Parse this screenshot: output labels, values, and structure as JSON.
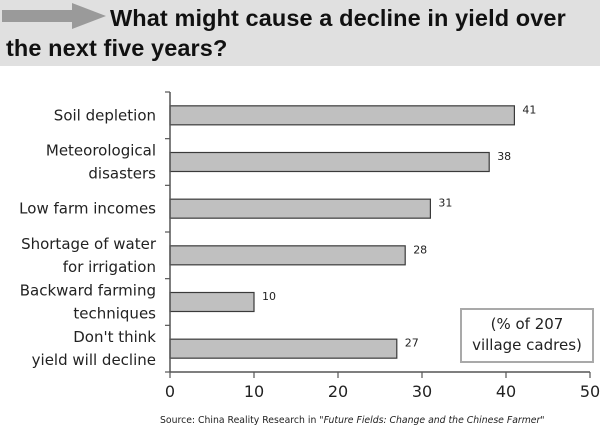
{
  "title": "What might cause a decline in yield over the next five years?",
  "chart_data": {
    "type": "bar",
    "orientation": "horizontal",
    "title": "What might cause a decline in yield over the next five years?",
    "categories": [
      [
        "Soil depletion"
      ],
      [
        "Meteorological",
        "disasters"
      ],
      [
        "Low farm incomes"
      ],
      [
        "Shortage of water",
        "for irrigation"
      ],
      [
        "Backward farming",
        "techniques"
      ],
      [
        "Don't think",
        "yield will decline"
      ]
    ],
    "values": [
      41,
      38,
      31,
      28,
      10,
      27
    ],
    "value_labels": [
      "41",
      "38",
      "31",
      "28",
      "10",
      "27"
    ],
    "xlim": [
      0,
      50
    ],
    "xticks": [
      "0",
      "10",
      "20",
      "30",
      "40",
      "50"
    ],
    "grid": false,
    "bar_color": "#c0c0c0",
    "bar_edge_color": "#3a3a3a",
    "annotation": [
      "(% of 207",
      "village cadres)"
    ]
  },
  "source": {
    "prefix": "Source: China Reality Research in ",
    "title": "\"Future Fields: Change and the Chinese Farmer\""
  },
  "colors": {
    "title_band": "#e0e0e0",
    "arrow": "#9a9a9a",
    "axis": "#555555"
  },
  "icons": {
    "title_arrow": "right-arrow-icon"
  }
}
